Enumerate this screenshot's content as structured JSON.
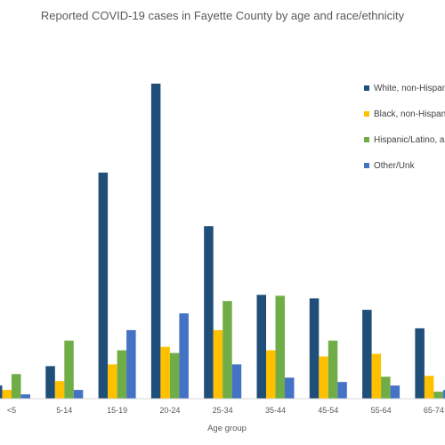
{
  "chart_data": {
    "type": "bar",
    "title": "Reported COVID-19 cases in Fayette County by age and race/ethnicity",
    "xlabel": "Age group",
    "ylabel": "",
    "categories": [
      "<5",
      "5-14",
      "15-19",
      "20-24",
      "25-34",
      "35-44",
      "45-54",
      "55-64",
      "65-74"
    ],
    "ylim": [
      0,
      360
    ],
    "grid": false,
    "legend_position": "right",
    "series": [
      {
        "name": "White, non-Hispanic",
        "color": "#1f4e79",
        "values": [
          15,
          37,
          257,
          358,
          196,
          118,
          114,
          101,
          80
        ]
      },
      {
        "name": "Black, non-Hispanic",
        "color": "#ffc000",
        "values": [
          10,
          20,
          39,
          59,
          78,
          55,
          48,
          51,
          26
        ]
      },
      {
        "name": "Hispanic/Latino, any race",
        "color": "#70ad47",
        "values": [
          28,
          66,
          55,
          52,
          111,
          117,
          66,
          25,
          8
        ]
      },
      {
        "name": "Other/Unk",
        "color": "#4472c4",
        "values": [
          5,
          10,
          78,
          97,
          39,
          24,
          19,
          15,
          10
        ]
      }
    ]
  }
}
